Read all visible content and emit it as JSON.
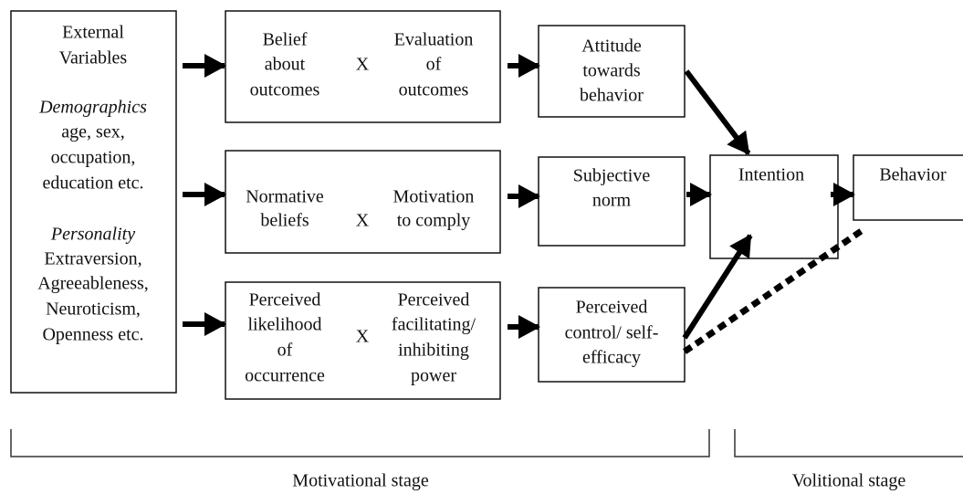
{
  "external": {
    "lines": [
      "External",
      "Variables"
    ],
    "demographics_label": "Demographics",
    "demographics": [
      "age, sex,",
      "occupation,",
      "education etc."
    ],
    "personality_label": "Personality",
    "personality": [
      "Extraversion,",
      "Agreeableness,",
      "Neuroticism,",
      "Openness etc."
    ]
  },
  "beliefs": [
    {
      "left": [
        "Belief",
        "about",
        "outcomes"
      ],
      "operator": "X",
      "right": [
        "Evaluation",
        "of",
        "outcomes"
      ]
    },
    {
      "left": [
        "Normative",
        "beliefs"
      ],
      "operator": "X",
      "right": [
        "Motivation",
        "to comply"
      ]
    },
    {
      "left": [
        "Perceived",
        "likelihood",
        "of",
        "occurrence"
      ],
      "operator": "X",
      "right": [
        "Perceived",
        "facilitating/",
        "inhibiting",
        "power"
      ]
    }
  ],
  "constructs": [
    [
      "Attitude",
      "towards",
      "behavior"
    ],
    [
      "Subjective",
      "norm"
    ],
    [
      "Perceived",
      "control/ self-",
      "efficacy"
    ]
  ],
  "intention": "Intention",
  "behavior": "Behavior",
  "stages": [
    "Motivational stage",
    "Volitional stage"
  ]
}
